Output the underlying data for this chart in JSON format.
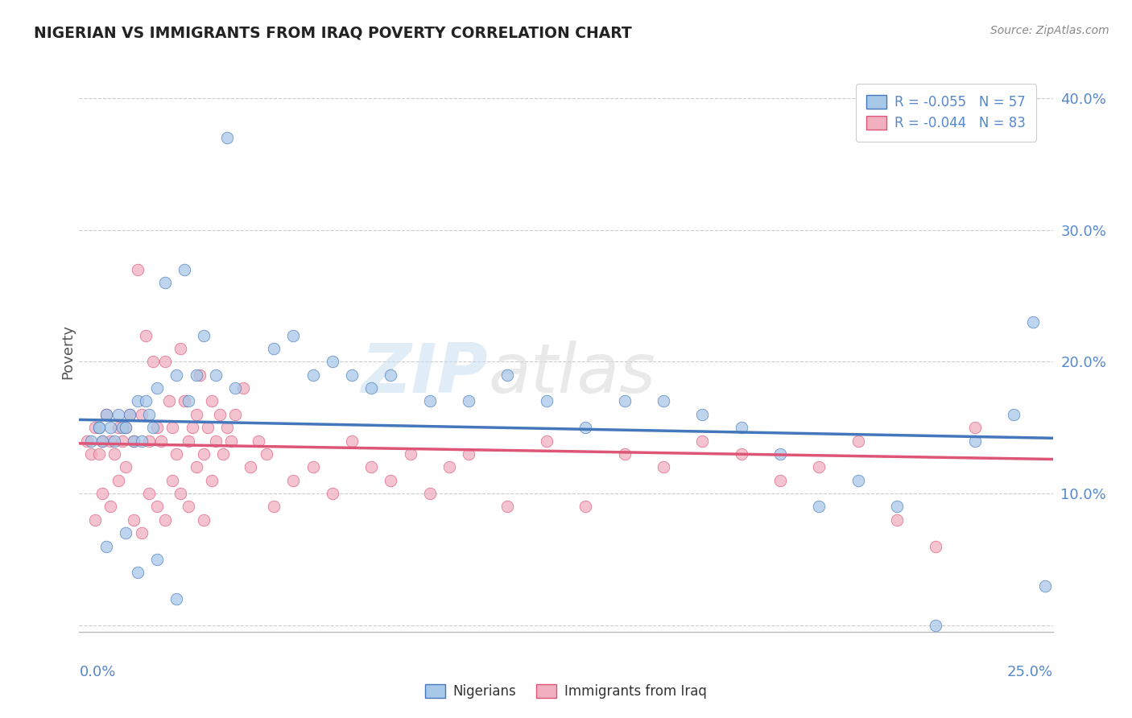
{
  "title": "NIGERIAN VS IMMIGRANTS FROM IRAQ POVERTY CORRELATION CHART",
  "source": "Source: ZipAtlas.com",
  "ylabel": "Poverty",
  "xmin": 0.0,
  "xmax": 0.25,
  "ymin": -0.005,
  "ymax": 0.42,
  "legend1_r": "R = -0.055",
  "legend1_n": "N = 57",
  "legend2_r": "R = -0.044",
  "legend2_n": "N = 83",
  "color_blue": "#a8c8e8",
  "color_pink": "#f0b0c0",
  "color_blue_dark": "#4477bb",
  "color_pink_dark": "#dd5577",
  "color_blue_tick": "#5588cc",
  "blue_x": [
    0.003,
    0.005,
    0.006,
    0.007,
    0.008,
    0.009,
    0.01,
    0.011,
    0.012,
    0.013,
    0.014,
    0.015,
    0.016,
    0.017,
    0.018,
    0.019,
    0.02,
    0.022,
    0.025,
    0.027,
    0.028,
    0.03,
    0.032,
    0.035,
    0.038,
    0.04,
    0.05,
    0.055,
    0.06,
    0.065,
    0.07,
    0.075,
    0.08,
    0.09,
    0.1,
    0.11,
    0.12,
    0.13,
    0.14,
    0.15,
    0.16,
    0.17,
    0.18,
    0.19,
    0.2,
    0.21,
    0.22,
    0.23,
    0.24,
    0.245,
    0.248,
    0.005,
    0.007,
    0.012,
    0.015,
    0.02,
    0.025
  ],
  "blue_y": [
    0.14,
    0.15,
    0.14,
    0.16,
    0.15,
    0.14,
    0.16,
    0.15,
    0.15,
    0.16,
    0.14,
    0.17,
    0.14,
    0.17,
    0.16,
    0.15,
    0.18,
    0.26,
    0.19,
    0.27,
    0.17,
    0.19,
    0.22,
    0.19,
    0.37,
    0.18,
    0.21,
    0.22,
    0.19,
    0.2,
    0.19,
    0.18,
    0.19,
    0.17,
    0.17,
    0.19,
    0.17,
    0.15,
    0.17,
    0.17,
    0.16,
    0.15,
    0.13,
    0.09,
    0.11,
    0.09,
    0.0,
    0.14,
    0.16,
    0.23,
    0.03,
    0.15,
    0.06,
    0.07,
    0.04,
    0.05,
    0.02
  ],
  "pink_x": [
    0.002,
    0.003,
    0.004,
    0.005,
    0.006,
    0.007,
    0.008,
    0.009,
    0.01,
    0.011,
    0.012,
    0.013,
    0.014,
    0.015,
    0.016,
    0.017,
    0.018,
    0.019,
    0.02,
    0.021,
    0.022,
    0.023,
    0.024,
    0.025,
    0.026,
    0.027,
    0.028,
    0.029,
    0.03,
    0.031,
    0.032,
    0.033,
    0.034,
    0.035,
    0.036,
    0.037,
    0.038,
    0.039,
    0.04,
    0.042,
    0.044,
    0.046,
    0.048,
    0.05,
    0.055,
    0.06,
    0.065,
    0.07,
    0.075,
    0.08,
    0.085,
    0.09,
    0.095,
    0.1,
    0.11,
    0.12,
    0.13,
    0.14,
    0.15,
    0.16,
    0.17,
    0.18,
    0.19,
    0.2,
    0.21,
    0.22,
    0.23,
    0.004,
    0.006,
    0.008,
    0.01,
    0.012,
    0.014,
    0.016,
    0.018,
    0.02,
    0.022,
    0.024,
    0.026,
    0.028,
    0.03,
    0.032,
    0.034
  ],
  "pink_y": [
    0.14,
    0.13,
    0.15,
    0.13,
    0.14,
    0.16,
    0.14,
    0.13,
    0.15,
    0.14,
    0.15,
    0.16,
    0.14,
    0.27,
    0.16,
    0.22,
    0.14,
    0.2,
    0.15,
    0.14,
    0.2,
    0.17,
    0.15,
    0.13,
    0.21,
    0.17,
    0.14,
    0.15,
    0.16,
    0.19,
    0.13,
    0.15,
    0.17,
    0.14,
    0.16,
    0.13,
    0.15,
    0.14,
    0.16,
    0.18,
    0.12,
    0.14,
    0.13,
    0.09,
    0.11,
    0.12,
    0.1,
    0.14,
    0.12,
    0.11,
    0.13,
    0.1,
    0.12,
    0.13,
    0.09,
    0.14,
    0.09,
    0.13,
    0.12,
    0.14,
    0.13,
    0.11,
    0.12,
    0.14,
    0.08,
    0.06,
    0.15,
    0.08,
    0.1,
    0.09,
    0.11,
    0.12,
    0.08,
    0.07,
    0.1,
    0.09,
    0.08,
    0.11,
    0.1,
    0.09,
    0.12,
    0.08,
    0.11
  ]
}
